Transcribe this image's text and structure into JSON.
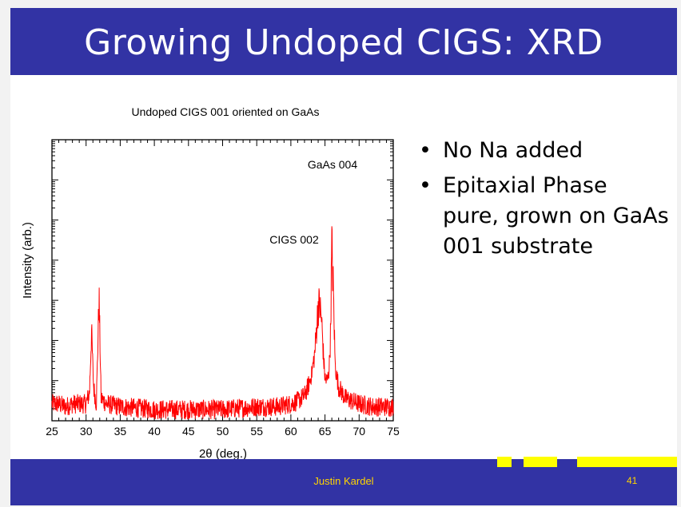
{
  "slide": {
    "title": "Growing Undoped CIGS: XRD",
    "bullets": [
      "No Na added",
      "Epitaxial Phase pure, grown on GaAs 001 substrate"
    ],
    "footer": {
      "author": "Justin Kardel",
      "page": "41"
    }
  },
  "colors": {
    "header_bar": "#3233a4",
    "title_text": "#ffffff",
    "footer_text": "#ffd400",
    "accent_blocks": "#ffff00",
    "trace": "#ff0000"
  },
  "chart_data": {
    "type": "line",
    "title": "Undoped CIGS 001 oriented on GaAs",
    "xlabel": "2θ (deg.)",
    "ylabel": "Intensity (arb.)",
    "xlim": [
      25,
      75
    ],
    "x_ticks": [
      "25",
      "30",
      "35",
      "40",
      "45",
      "50",
      "55",
      "60",
      "65",
      "70",
      "75"
    ],
    "y_ticks_shown": false,
    "grid": false,
    "color": "#ff0000",
    "series": [
      {
        "x": [
          25,
          26,
          27,
          28,
          29,
          30,
          30.5,
          30.8,
          31.1,
          31.5,
          31.7,
          31.9,
          32.2,
          33,
          35,
          40,
          45,
          50,
          55,
          58,
          60,
          61,
          62,
          62.5,
          63,
          63.5,
          63.8,
          64.0,
          64.2,
          64.5,
          64.8,
          65.0,
          65.3,
          65.6,
          65.8,
          66.0,
          66.2,
          66.5,
          67,
          67.5,
          68,
          69,
          70,
          72,
          75
        ],
        "y": [
          0.06,
          0.06,
          0.05,
          0.06,
          0.06,
          0.06,
          0.1,
          0.32,
          0.12,
          0.06,
          0.25,
          0.44,
          0.08,
          0.06,
          0.05,
          0.04,
          0.04,
          0.04,
          0.05,
          0.05,
          0.06,
          0.07,
          0.09,
          0.12,
          0.16,
          0.24,
          0.34,
          0.41,
          0.41,
          0.36,
          0.22,
          0.15,
          0.14,
          0.18,
          0.3,
          0.62,
          0.48,
          0.19,
          0.12,
          0.1,
          0.08,
          0.07,
          0.06,
          0.05,
          0.05
        ]
      }
    ],
    "annotations": [
      {
        "text": "GaAs 004",
        "x": 66
      },
      {
        "text": "CIGS 002",
        "x": 64.2
      }
    ]
  }
}
